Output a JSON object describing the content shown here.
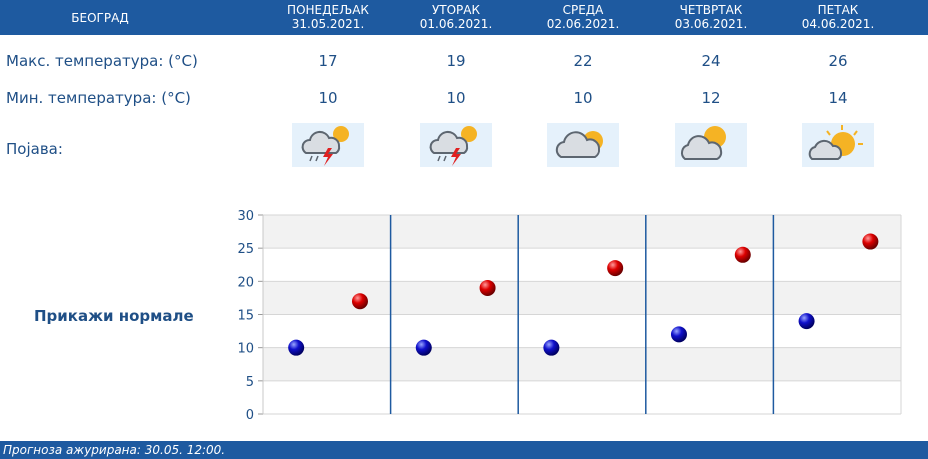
{
  "header": {
    "city": "БЕОГРАД",
    "days": [
      {
        "name": "ПОНЕДЕЉАК",
        "date": "31.05.2021."
      },
      {
        "name": "УТОРАК",
        "date": "01.06.2021."
      },
      {
        "name": "СРЕДА",
        "date": "02.06.2021."
      },
      {
        "name": "ЧЕТВРТАК",
        "date": "03.06.2021."
      },
      {
        "name": "ПЕТАК",
        "date": "04.06.2021."
      }
    ]
  },
  "rows": {
    "max_label": "Макс. температура: (°C)",
    "min_label": "Мин. температура: (°C)",
    "phenomenon_label": "Појава:"
  },
  "max_temps": [
    "17",
    "19",
    "22",
    "24",
    "26"
  ],
  "min_temps": [
    "10",
    "10",
    "10",
    "12",
    "14"
  ],
  "icons": [
    "thunderstorm-icon",
    "thunderstorm-icon",
    "cloudy-sun-icon",
    "cloudy-sun-icon",
    "partly-sunny-icon"
  ],
  "normals_link": "Прикажи нормале",
  "footer": {
    "updated": "Прогноза ажурирана:  30.05. 12:00."
  },
  "colors": {
    "header_bg": "#1e5aa0",
    "max_marker": "#cc0000",
    "min_marker": "#0a0ab8"
  },
  "chart_data": {
    "type": "scatter",
    "categories": [
      "31.05.2021.",
      "01.06.2021.",
      "02.06.2021.",
      "03.06.2021.",
      "04.06.2021."
    ],
    "series": [
      {
        "values": [
          10,
          10,
          10,
          12,
          14
        ]
      },
      {
        "values": [
          17,
          19,
          22,
          24,
          26
        ]
      }
    ],
    "ylim": [
      0,
      30
    ],
    "yticks": [
      "0",
      "5",
      "10",
      "15",
      "20",
      "25",
      "30"
    ],
    "grid": true
  }
}
